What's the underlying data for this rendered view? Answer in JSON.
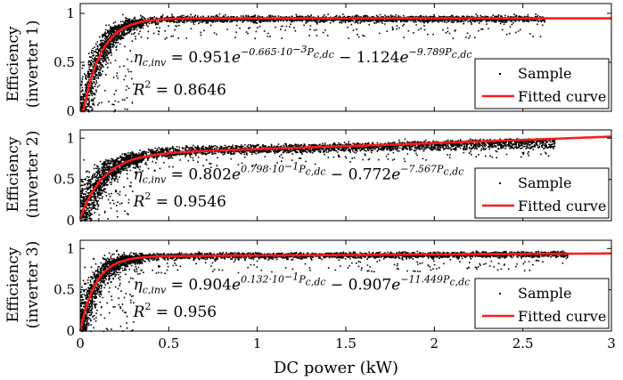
{
  "chart_data": [
    {
      "type": "scatter",
      "ylabel_line1": "Efficiency",
      "ylabel_line2": "(inverter 1)",
      "xlim": [
        0,
        3
      ],
      "ylim": [
        0,
        1.1
      ],
      "yticks": [
        "0",
        "0.5",
        "1"
      ],
      "legend": {
        "placement": "lower-right",
        "sample": "Sample",
        "fitted": "Fitted curve"
      },
      "equation": {
        "lhs": "η",
        "lhs_sub": "c,inv",
        "eq": " = 0.951",
        "exp1": "−0.665·10",
        "exp1_sup": "−3",
        "exp1_tail": "P",
        "exp1_sub": "c,dc",
        "mid": " − 1.124",
        "exp2": "−9.789P",
        "exp2_sub": "c,dc"
      },
      "r2": {
        "label": "R",
        "sup": "2",
        "value": " = 0.8646"
      },
      "model": {
        "a": 0.951,
        "b": -0.000665,
        "c": 1.124,
        "d": -9.789
      },
      "sample_cloud": {
        "x_max": 2.62,
        "band_high": 0.97,
        "band_low": 0.9
      }
    },
    {
      "type": "scatter",
      "ylabel_line1": "Efficiency",
      "ylabel_line2": "(inverter 2)",
      "xlim": [
        0,
        3
      ],
      "ylim": [
        0,
        1.1
      ],
      "yticks": [
        "0",
        "0.5",
        "1"
      ],
      "legend": {
        "placement": "lower-right",
        "sample": "Sample",
        "fitted": "Fitted curve"
      },
      "equation": {
        "lhs": "η",
        "lhs_sub": "c,inv",
        "eq": " = 0.802",
        "exp1": "0.798·10",
        "exp1_sup": "−1",
        "exp1_tail": "P",
        "exp1_sub": "c,dc",
        "mid": " − 0.772",
        "exp2": "−7.567P",
        "exp2_sub": "c,dc"
      },
      "r2": {
        "label": "R",
        "sup": "2",
        "value": " = 0.9546"
      },
      "model": {
        "a": 0.802,
        "b": 0.0798,
        "c": 0.772,
        "d": -7.567
      },
      "sample_cloud": {
        "x_max": 2.68,
        "band_high": 0.97,
        "band_low": 0.78
      }
    },
    {
      "type": "scatter",
      "ylabel_line1": "Efficiency",
      "ylabel_line2": "(inverter 3)",
      "xlim": [
        0,
        3
      ],
      "ylim": [
        0,
        1.1
      ],
      "yticks": [
        "0",
        "0.5",
        "1"
      ],
      "xticks": [
        "0",
        "0.5",
        "1",
        "1.5",
        "2",
        "2.5",
        "3"
      ],
      "xlabel": "DC power (kW)",
      "legend": {
        "placement": "lower-right",
        "sample": "Sample",
        "fitted": "Fitted curve"
      },
      "equation": {
        "lhs": "η",
        "lhs_sub": "c,inv",
        "eq": " = 0.904",
        "exp1": "0.132·10",
        "exp1_sup": "−1",
        "exp1_tail": "P",
        "exp1_sub": "c,dc",
        "mid": " − 0.907",
        "exp2": "−11.449P",
        "exp2_sub": "c,dc"
      },
      "r2": {
        "label": "R",
        "sup": "2",
        "value": " = 0.956"
      },
      "model": {
        "a": 0.904,
        "b": 0.0132,
        "c": 0.907,
        "d": -11.449
      },
      "sample_cloud": {
        "x_max": 2.75,
        "band_high": 0.97,
        "band_low": 0.88
      }
    }
  ],
  "colors": {
    "fit": "#ff1a1a",
    "sample": "#000000",
    "axis": "#000000"
  }
}
